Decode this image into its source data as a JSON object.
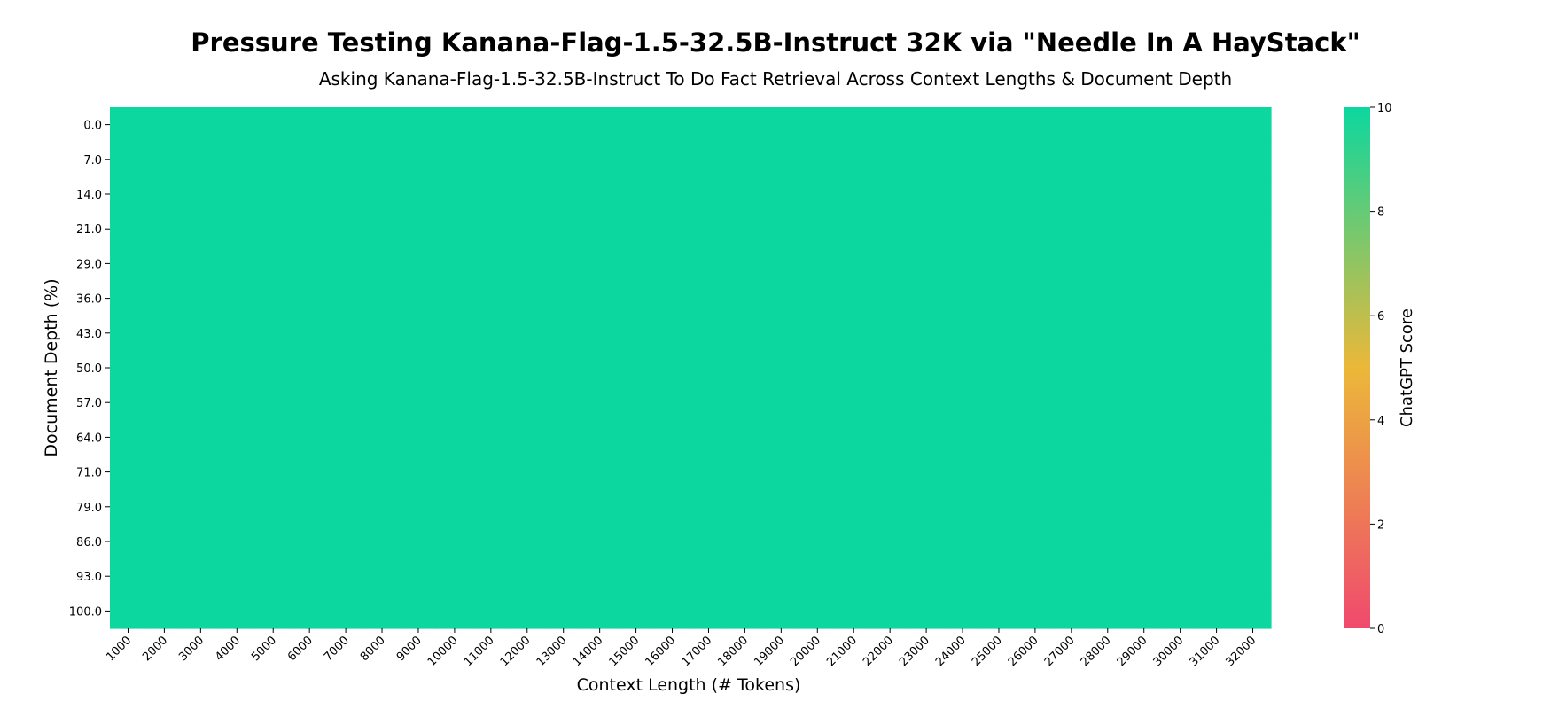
{
  "chart_data": {
    "type": "heatmap",
    "title": "Pressure Testing Kanana-Flag-1.5-32.5B-Instruct 32K via \"Needle In A HayStack\"",
    "subtitle": "Asking Kanana-Flag-1.5-32.5B-Instruct To Do Fact Retrieval Across Context Lengths & Document Depth",
    "xlabel": "Context Length (# Tokens)",
    "ylabel": "Document Depth (%)",
    "x": [
      "1000",
      "2000",
      "3000",
      "4000",
      "5000",
      "6000",
      "7000",
      "8000",
      "9000",
      "10000",
      "11000",
      "12000",
      "13000",
      "14000",
      "15000",
      "16000",
      "17000",
      "18000",
      "19000",
      "20000",
      "21000",
      "22000",
      "23000",
      "24000",
      "25000",
      "26000",
      "27000",
      "28000",
      "29000",
      "30000",
      "31000",
      "32000"
    ],
    "y": [
      "0.0",
      "7.0",
      "14.0",
      "21.0",
      "29.0",
      "36.0",
      "43.0",
      "50.0",
      "57.0",
      "64.0",
      "71.0",
      "79.0",
      "86.0",
      "93.0",
      "100.0"
    ],
    "values_all": 10,
    "colorbar": {
      "label": "ChatGPT Score",
      "range": [
        0,
        10
      ],
      "ticks": [
        "0",
        "2",
        "4",
        "6",
        "8",
        "10"
      ],
      "colors": [
        "#F0496E",
        "#EBB839",
        "#0CD79F"
      ]
    },
    "grid": false
  }
}
